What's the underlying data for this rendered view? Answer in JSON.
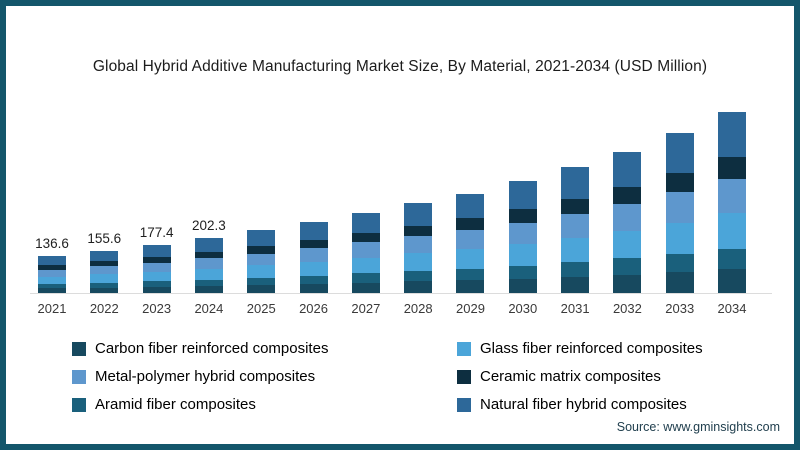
{
  "frame_color": "#14566b",
  "title": "Global Hybrid Additive Manufacturing Market Size, By Material, 2021-2034 (USD Million)",
  "source_text": "Source: www.gminsights.com",
  "chart_data": {
    "type": "bar",
    "stacked": true,
    "stack_order": "bottom-to-top",
    "unit": "USD Million",
    "categories": [
      "2021",
      "2022",
      "2023",
      "2024",
      "2025",
      "2026",
      "2027",
      "2028",
      "2029",
      "2030",
      "2031",
      "2032",
      "2033",
      "2034"
    ],
    "totals": [
      136.6,
      155.6,
      177.4,
      202.3,
      230,
      261,
      295,
      330,
      365,
      410,
      462,
      520,
      588,
      665
    ],
    "shown_total_labels": [
      "136.6",
      "155.6",
      "177.4",
      "202.3",
      "",
      "",
      "",
      "",
      "",
      "",
      "",
      "",
      "",
      ""
    ],
    "series": [
      {
        "name": "Carbon fiber reinforced composites",
        "color": "#17495f",
        "values": [
          17.8,
          20.2,
          23.1,
          26.3,
          29.9,
          33.9,
          38.4,
          42.9,
          47.5,
          53.3,
          60.1,
          67.6,
          76.4,
          86.5
        ]
      },
      {
        "name": "Aramid fiber composites",
        "color": "#1a607c",
        "values": [
          15.7,
          17.9,
          20.4,
          23.3,
          26.5,
          30.0,
          33.9,
          38.0,
          42.0,
          47.2,
          53.1,
          59.8,
          67.6,
          76.5
        ]
      },
      {
        "name": "Glass fiber reinforced composites",
        "color": "#4ba5d9",
        "values": [
          26.6,
          30.3,
          34.6,
          39.4,
          44.9,
          50.9,
          57.5,
          64.4,
          71.2,
          80.0,
          90.1,
          101.4,
          114.7,
          129.7
        ]
      },
      {
        "name": "Metal-polymer hybrid composites",
        "color": "#5e97cd",
        "values": [
          26.0,
          29.6,
          33.7,
          38.4,
          43.7,
          49.6,
          56.1,
          62.7,
          69.4,
          77.9,
          87.8,
          98.8,
          111.7,
          126.4
        ]
      },
      {
        "name": "Ceramic matrix composites",
        "color": "#0d2e40",
        "values": [
          16.4,
          18.7,
          21.3,
          24.3,
          27.6,
          31.3,
          35.4,
          39.6,
          43.8,
          49.2,
          55.4,
          62.4,
          70.6,
          79.8
        ]
      },
      {
        "name": "Natural fiber hybrid composites",
        "color": "#2d6899",
        "values": [
          34.2,
          38.9,
          44.4,
          50.6,
          57.5,
          65.3,
          73.8,
          82.5,
          91.3,
          102.5,
          115.5,
          130.0,
          147.0,
          166.3
        ]
      }
    ],
    "legend_position": "bottom",
    "grid": false,
    "ylim": [
      0,
      745
    ]
  },
  "legend": {
    "items": [
      {
        "label": "Carbon fiber reinforced composites",
        "color": "#17495f"
      },
      {
        "label": "Glass fiber reinforced composites",
        "color": "#4ba5d9"
      },
      {
        "label": "Metal-polymer hybrid composites",
        "color": "#5e97cd"
      },
      {
        "label": "Ceramic matrix composites",
        "color": "#0d2e40"
      },
      {
        "label": "Aramid fiber composites",
        "color": "#1a607c"
      },
      {
        "label": "Natural fiber hybrid composites",
        "color": "#2d6899"
      }
    ]
  }
}
